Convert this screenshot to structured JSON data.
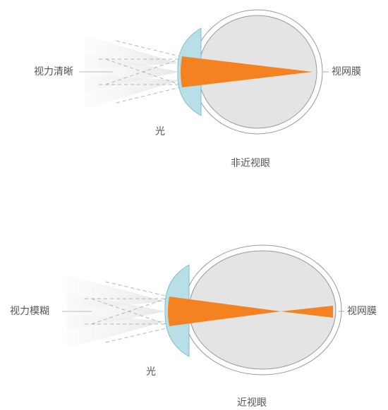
{
  "diagrams": [
    {
      "left_label": "视力清晰",
      "right_label": "视网膜",
      "light_label": "光",
      "caption": "非近视眼"
    },
    {
      "left_label": "视力模糊",
      "right_label": "视网膜",
      "light_label": "光",
      "caption": "近视眼"
    }
  ]
}
